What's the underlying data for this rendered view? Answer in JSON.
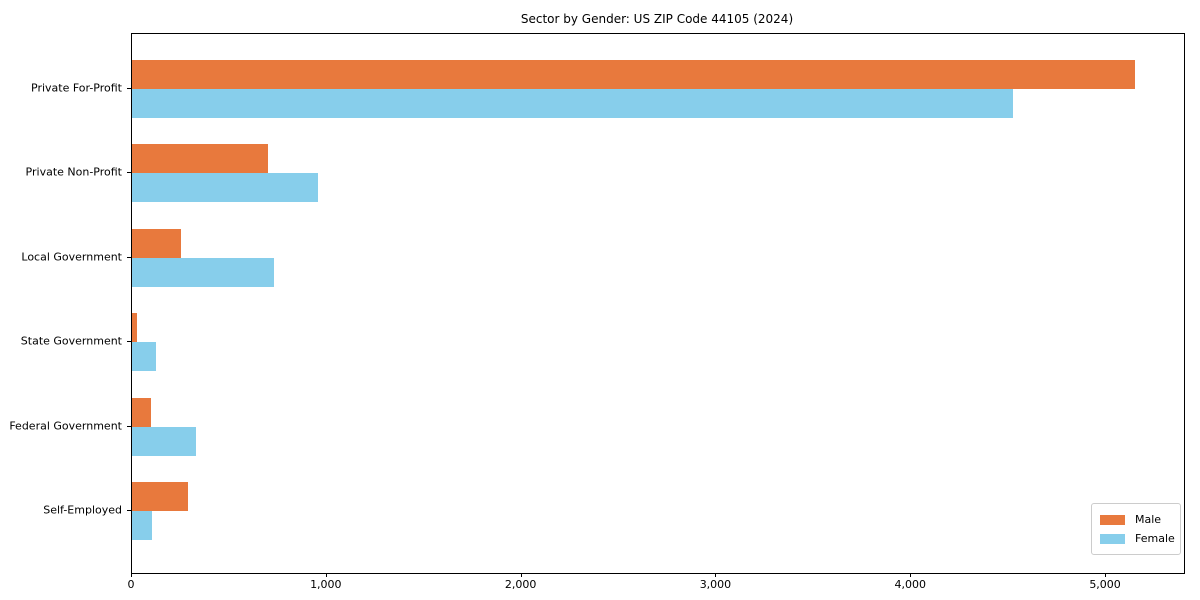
{
  "chart_data": {
    "type": "bar",
    "orientation": "horizontal",
    "title": "Sector by Gender: US ZIP Code 44105 (2024)",
    "categories": [
      "Private For-Profit",
      "Private Non-Profit",
      "Local Government",
      "State Government",
      "Federal Government",
      "Self-Employed"
    ],
    "series": [
      {
        "name": "Male",
        "color": "#e8793d",
        "values": [
          5150,
          700,
          250,
          25,
          100,
          290
        ]
      },
      {
        "name": "Female",
        "color": "#87ceeb",
        "values": [
          4520,
          955,
          730,
          125,
          330,
          105
        ]
      }
    ],
    "xlabel": "",
    "ylabel": "",
    "xlim": [
      0,
      5400
    ],
    "xticks": [
      0,
      1000,
      2000,
      3000,
      4000,
      5000
    ],
    "xtick_labels": [
      "0",
      "1,000",
      "2,000",
      "3,000",
      "4,000",
      "5,000"
    ],
    "grid": false,
    "legend": {
      "position": "lower right",
      "entries": [
        "Male",
        "Female"
      ]
    },
    "colors": {
      "male": "#e8793d",
      "female": "#87ceeb",
      "spine": "#000000",
      "background": "#ffffff"
    }
  }
}
